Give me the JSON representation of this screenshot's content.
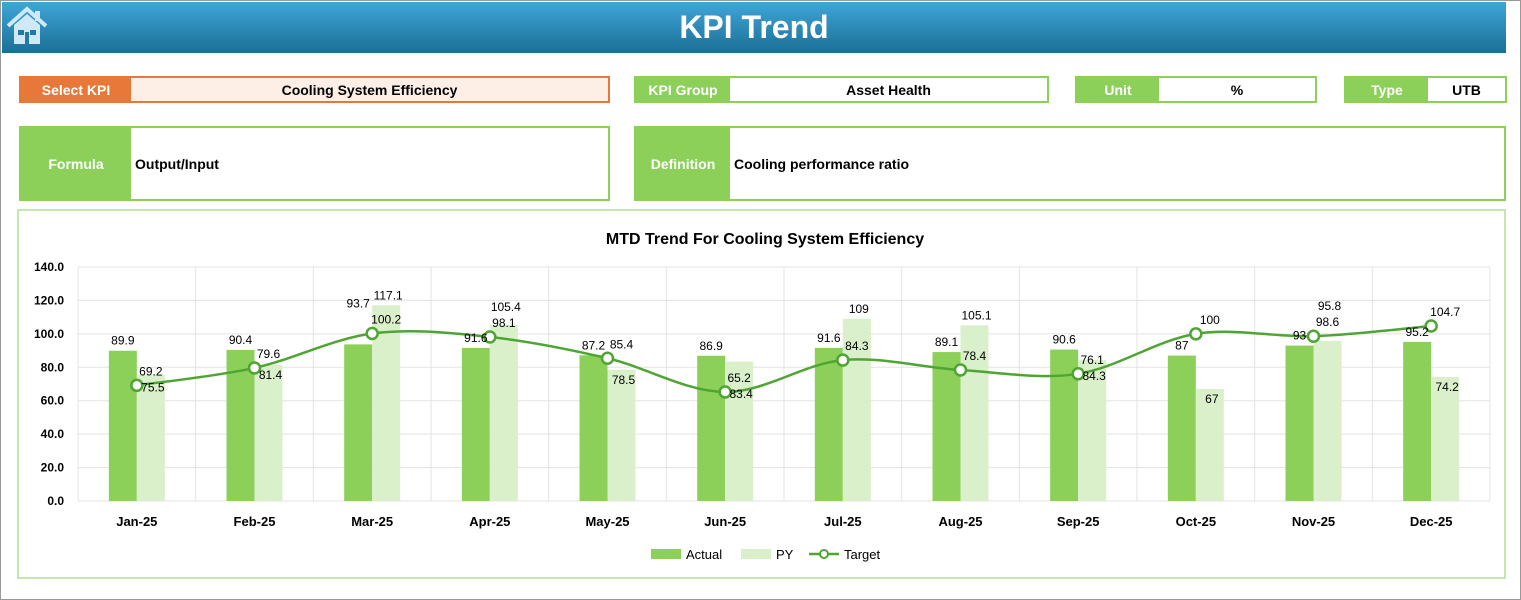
{
  "header": {
    "title": "KPI Trend",
    "home_icon": "home-icon"
  },
  "fields": {
    "select_kpi": {
      "label": "Select KPI",
      "value": "Cooling System Efficiency"
    },
    "kpi_group": {
      "label": "KPI Group",
      "value": "Asset Health"
    },
    "unit": {
      "label": "Unit",
      "value": "%"
    },
    "type": {
      "label": "Type",
      "value": "UTB"
    },
    "formula": {
      "label": "Formula",
      "value": "Output/Input"
    },
    "definition": {
      "label": "Definition",
      "value": "Cooling performance ratio"
    }
  },
  "colors": {
    "actual": "#8cd05a",
    "py": "#d9f0cb",
    "target": "#4fa534",
    "header": "#1f7aa6",
    "select": "#e8773a"
  },
  "chart_data": {
    "type": "bar",
    "title": "MTD Trend For Cooling System Efficiency",
    "categories": [
      "Jan-25",
      "Feb-25",
      "Mar-25",
      "Apr-25",
      "May-25",
      "Jun-25",
      "Jul-25",
      "Aug-25",
      "Sep-25",
      "Oct-25",
      "Nov-25",
      "Dec-25"
    ],
    "series": [
      {
        "name": "Actual",
        "type": "bar",
        "values": [
          89.9,
          90.4,
          93.7,
          91.6,
          87.2,
          86.9,
          91.6,
          89.1,
          90.6,
          87.0,
          93.0,
          95.2
        ]
      },
      {
        "name": "PY",
        "type": "bar",
        "values": [
          75.5,
          81.4,
          117.1,
          105.4,
          78.5,
          83.4,
          109.0,
          105.1,
          84.3,
          67.0,
          95.8,
          74.2
        ]
      },
      {
        "name": "Target",
        "type": "line",
        "values": [
          69.2,
          79.6,
          100.2,
          98.1,
          85.4,
          65.2,
          84.3,
          78.4,
          76.1,
          100.0,
          98.6,
          104.7
        ]
      }
    ],
    "ylim": [
      0,
      140
    ],
    "yticks": [
      "0.0",
      "20.0",
      "40.0",
      "60.0",
      "80.0",
      "100.0",
      "120.0",
      "140.0"
    ],
    "grid": true,
    "legend": "bottom"
  }
}
